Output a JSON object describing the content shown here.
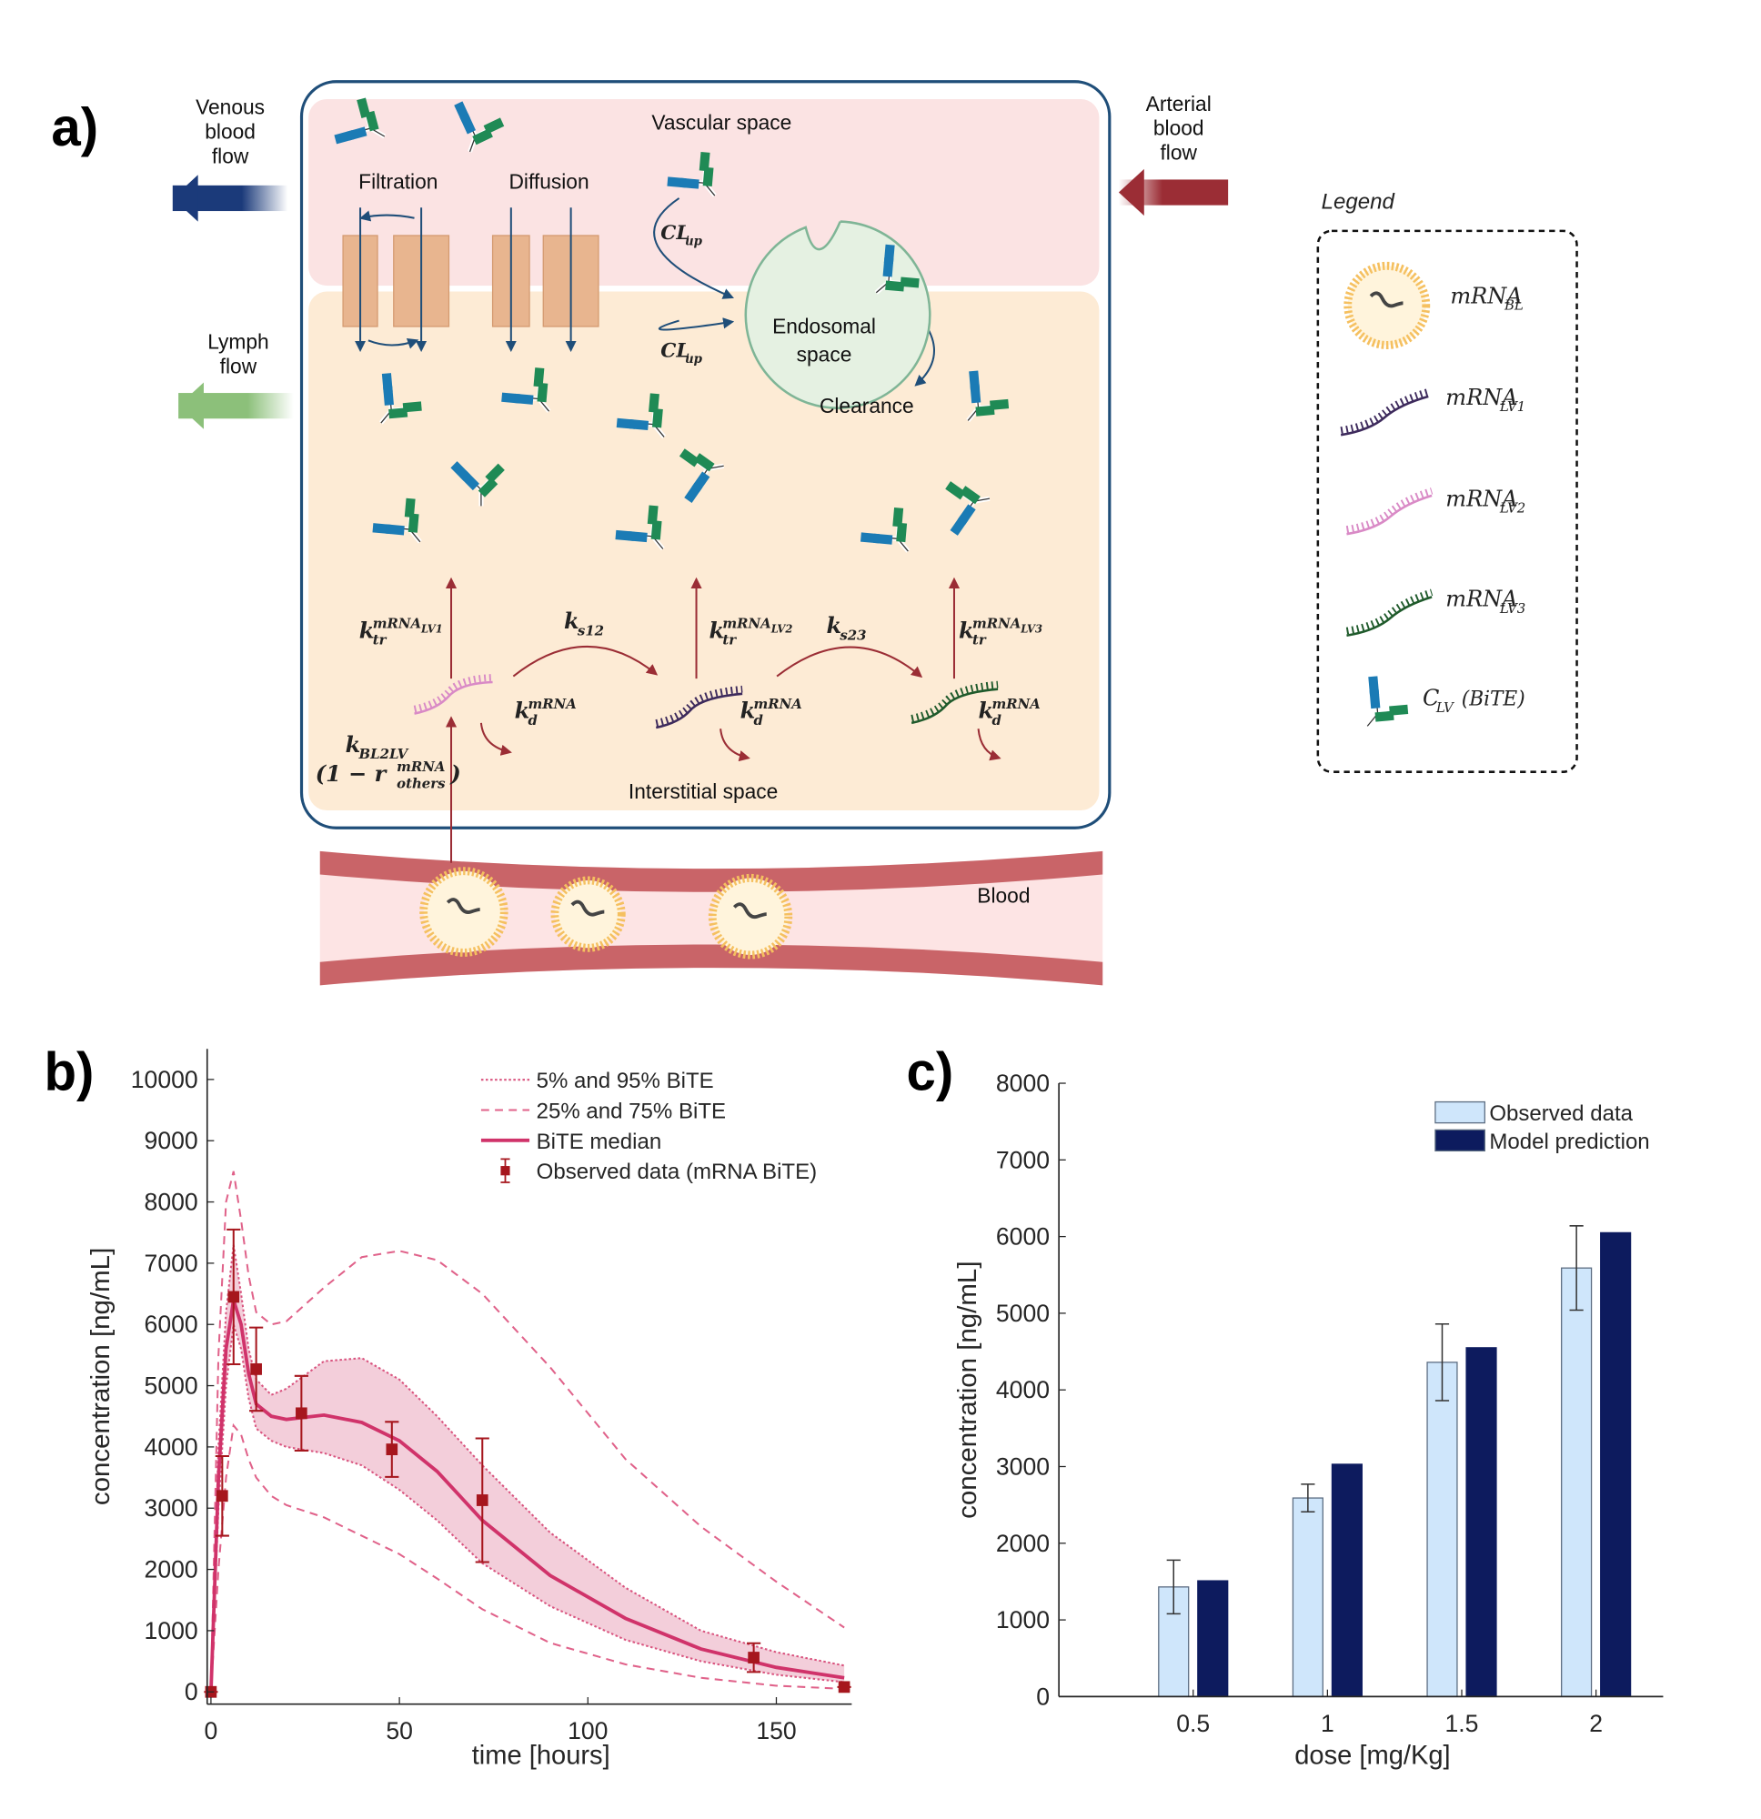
{
  "panel_a": {
    "label": "a)",
    "venous": [
      "Venous",
      "blood",
      "flow"
    ],
    "lymph": [
      "Lymph",
      "flow"
    ],
    "arterial": [
      "Arterial",
      "blood",
      "flow"
    ],
    "vascular": "Vascular space",
    "filtration": "Filtration",
    "diffusion": "Diffusion",
    "cl_up": {
      "main": "CL",
      "sub": "up"
    },
    "endosomal": [
      "Endosomal",
      "space"
    ],
    "clearance": "Clearance",
    "interstitial": "Interstitial space",
    "blood": "Blood",
    "k_tr": [
      {
        "main": "k",
        "sub": "tr",
        "sup": "mRNA",
        "sup_sub": "LV1"
      },
      {
        "main": "k",
        "sub": "tr",
        "sup": "mRNA",
        "sup_sub": "LV2"
      },
      {
        "main": "k",
        "sub": "tr",
        "sup": "mRNA",
        "sup_sub": "LV3"
      }
    ],
    "k_s": [
      {
        "main": "k",
        "sub": "s12"
      },
      {
        "main": "k",
        "sub": "s23"
      }
    ],
    "k_d": {
      "main": "k",
      "sub": "d",
      "sup": "mRNA"
    },
    "k_bl2lv": {
      "main": "k",
      "sub": "BL2LV"
    },
    "fraction": {
      "main": "(1 − r",
      "sup": "mRNA",
      "sub": "others",
      "close": ")"
    },
    "legend": {
      "title": "Legend",
      "items": [
        {
          "main": "mRNA",
          "sub": "BL"
        },
        {
          "main": "mRNA",
          "sub": "LV1"
        },
        {
          "main": "mRNA",
          "sub": "LV2"
        },
        {
          "main": "mRNA",
          "sub": "LV3"
        },
        {
          "main": "C",
          "sub": "LV",
          "suffix": " (BiTE)"
        }
      ]
    }
  },
  "chart_data": [
    {
      "type": "line",
      "label": "b)",
      "xlabel": "time [hours]",
      "ylabel": "concentration [ng/mL]",
      "x": [
        0,
        2,
        4,
        6,
        8,
        10,
        12,
        16,
        20,
        30,
        40,
        50,
        60,
        72,
        90,
        110,
        130,
        150,
        168
      ],
      "xlim": [
        -1,
        170
      ],
      "xticks": [
        0,
        50,
        100,
        150
      ],
      "ylim": [
        -200,
        10500
      ],
      "yticks": [
        0,
        1000,
        2000,
        3000,
        4000,
        5000,
        6000,
        7000,
        8000,
        9000,
        10000
      ],
      "bands": [
        {
          "name": "5% and 95% BiTE",
          "color": "#d9547f",
          "style": "dotted",
          "fill": "#e9a5bb",
          "lower": [
            0,
            3000,
            5000,
            6000,
            5600,
            4800,
            4300,
            4100,
            4000,
            3900,
            3700,
            3300,
            2800,
            2100,
            1400,
            850,
            500,
            280,
            160
          ],
          "upper": [
            0,
            4000,
            6200,
            7300,
            6500,
            5600,
            5100,
            4850,
            4950,
            5400,
            5450,
            5100,
            4500,
            3700,
            2600,
            1700,
            1000,
            650,
            430
          ]
        },
        {
          "name": "25% and 75% BiTE",
          "color": "#e0628a",
          "style": "dashed",
          "lower": [
            0,
            2000,
            3500,
            4350,
            4200,
            3800,
            3500,
            3200,
            3050,
            2850,
            2550,
            2250,
            1850,
            1350,
            800,
            450,
            230,
            100,
            50
          ],
          "upper": [
            0,
            5500,
            8000,
            8500,
            7700,
            6800,
            6200,
            6000,
            6050,
            6600,
            7100,
            7200,
            7050,
            6500,
            5300,
            3800,
            2700,
            1800,
            1050
          ]
        }
      ],
      "series": [
        {
          "name": "BiTE median",
          "color": "#d0336a",
          "values": [
            0,
            3500,
            5600,
            6400,
            6000,
            5200,
            4700,
            4500,
            4450,
            4520,
            4400,
            4100,
            3600,
            2800,
            1900,
            1200,
            700,
            400,
            230
          ]
        }
      ],
      "observed": {
        "name": "Observed data (mRNA BiTE)",
        "color": "#a6161d",
        "x": [
          0,
          3,
          6,
          12,
          24,
          48,
          72,
          144,
          168
        ],
        "values": [
          0,
          3200,
          6450,
          5270,
          4550,
          3960,
          3130,
          560,
          80
        ],
        "errors": [
          0,
          650,
          1100,
          680,
          610,
          450,
          1010,
          235,
          0
        ]
      }
    },
    {
      "type": "bar",
      "label": "c)",
      "xlabel": "dose [mg/Kg]",
      "ylabel": "concentration [ng/mL]",
      "x": [
        0.5,
        1,
        1.5,
        2
      ],
      "xlim": [
        0,
        2.25
      ],
      "xticks": [
        0.5,
        1,
        1.5,
        2
      ],
      "ylim": [
        0,
        8000
      ],
      "yticks": [
        0,
        1000,
        2000,
        3000,
        4000,
        5000,
        6000,
        7000,
        8000
      ],
      "series": [
        {
          "name": "Observed data",
          "color": "#cfe6fb",
          "values": [
            1430,
            2590,
            4360,
            5590
          ],
          "errors": [
            350,
            180,
            500,
            550
          ]
        },
        {
          "name": "Model prediction",
          "color": "#0d1b5e",
          "values": [
            1510,
            3030,
            4550,
            6050
          ]
        }
      ]
    }
  ]
}
